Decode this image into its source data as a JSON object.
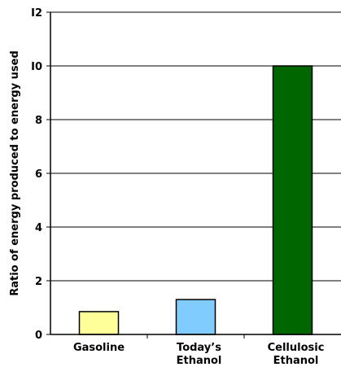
{
  "chart_data": {
    "type": "bar",
    "title": "",
    "xlabel": "",
    "ylabel": "Ratio of energy produced to energy used",
    "ylim": [
      0,
      12
    ],
    "yticks": [
      "0",
      "2",
      "4",
      "6",
      "8",
      "I0",
      "I2"
    ],
    "ytick_values": [
      0,
      2,
      4,
      6,
      8,
      10,
      12
    ],
    "grid": true,
    "legend": "none",
    "categories": [
      [
        "Gasoline"
      ],
      [
        "Today’s",
        "Ethanol"
      ],
      [
        "Cellulosic",
        "Ethanol"
      ]
    ],
    "values": [
      0.85,
      1.3,
      10.0
    ],
    "colors": [
      "#ffff99",
      "#80ccff",
      "#006600"
    ],
    "bar_border_color": "#000000",
    "gridline_color": "#000000"
  }
}
